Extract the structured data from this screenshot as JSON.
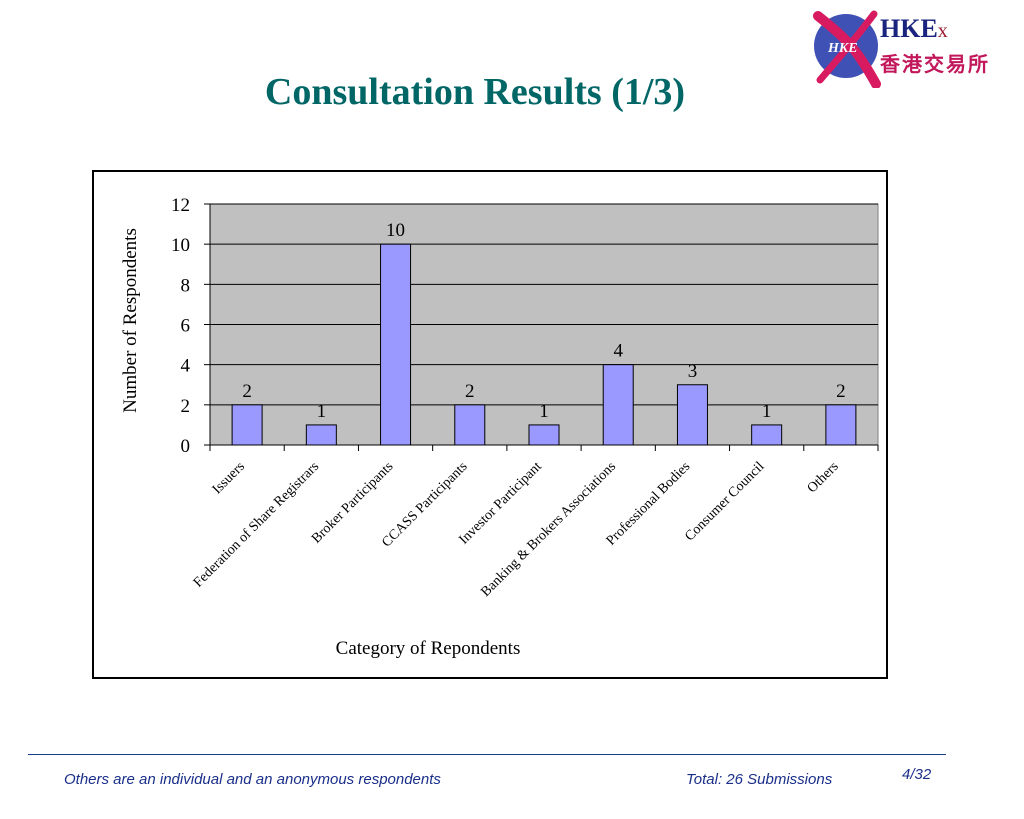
{
  "slide": {
    "title": "Consultation Results (1/3)",
    "footer_left": "Others are an individual and an anonymous respondents",
    "footer_right": "Total: 26 Submissions",
    "page_number": "4/32"
  },
  "logo": {
    "text_main": "HKE",
    "text_x": "x",
    "text_badge": "HKE",
    "text_chinese": "香港交易所"
  },
  "chart_data": {
    "type": "bar",
    "categories": [
      "Issuers",
      "Federation of Share Registrars",
      "Broker Participants",
      "CCASS Participants",
      "Investor Participant",
      "Banking & Brokers Associations",
      "Professional Bodies",
      "Consumer Council",
      "Others"
    ],
    "values": [
      2,
      1,
      10,
      2,
      1,
      4,
      3,
      1,
      2
    ],
    "xlabel": "Category of Repondents",
    "ylabel": "Number of Respondents",
    "ylim": [
      0,
      12
    ],
    "yticks": [
      0,
      2,
      4,
      6,
      8,
      10,
      12
    ],
    "grid": true,
    "data_labels": true,
    "colors": {
      "bar": "#9999ff",
      "plot_bg": "#c0c0c0",
      "grid": "#000000"
    }
  }
}
